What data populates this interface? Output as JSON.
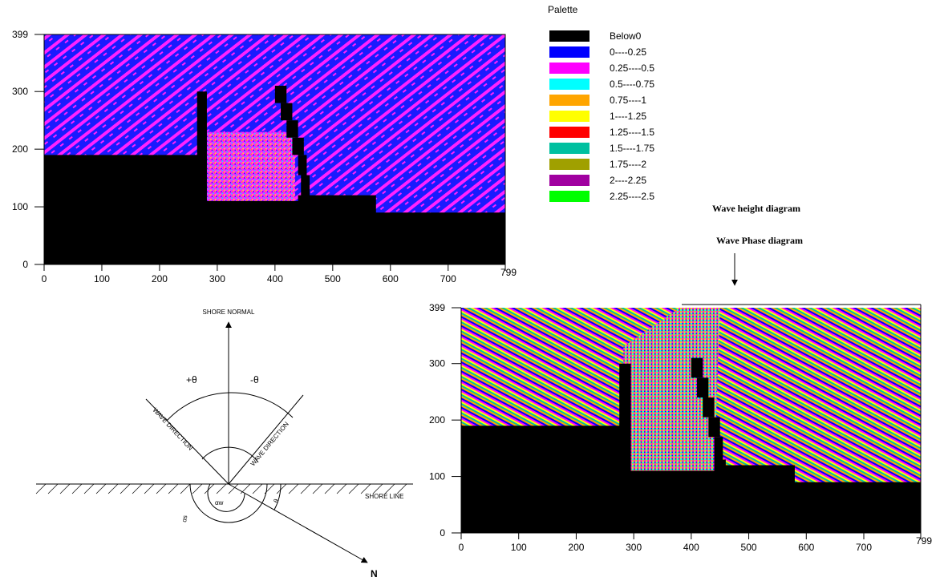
{
  "wave_height_plot": {
    "xticks": [
      0,
      100,
      200,
      300,
      400,
      500,
      600,
      700,
      799
    ],
    "yticks": [
      0,
      100,
      200,
      300,
      399
    ]
  },
  "palette": {
    "title": "Palette",
    "entries": [
      {
        "label": "Below0",
        "color": "#000000"
      },
      {
        "label": "0----0.25",
        "color": "#0000ff"
      },
      {
        "label": "0.25----0.5",
        "color": "#ff00ff"
      },
      {
        "label": "0.5----0.75",
        "color": "#00ffff"
      },
      {
        "label": "0.75----1",
        "color": "#ffa500"
      },
      {
        "label": "1----1.25",
        "color": "#ffff00"
      },
      {
        "label": "1.25----1.5",
        "color": "#ff0000"
      },
      {
        "label": "1.5----1.75",
        "color": "#00c0a0"
      },
      {
        "label": "1.75----2",
        "color": "#a0a000"
      },
      {
        "label": "2----2.25",
        "color": "#a000a0"
      },
      {
        "label": "2.25----2.5",
        "color": "#00ff00"
      }
    ]
  },
  "annotations": {
    "wave_height": "Wave height diagram",
    "wave_phase": "Wave Phase diagram"
  },
  "diagram": {
    "shore_normal": "SHORE NORMAL",
    "plus_theta": "+θ",
    "minus_theta": "-θ",
    "wave_direction_left": "WAVE DIRECTION",
    "wave_direction_right": "WAVE DIRECTION",
    "shore_line": "SHORE LINE",
    "alpha_s": "αs",
    "alpha_w": "αw",
    "theta": "θ",
    "north": "N"
  },
  "wave_phase_plot": {
    "xticks": [
      0,
      100,
      200,
      300,
      400,
      500,
      600,
      700,
      799
    ],
    "yticks": [
      0,
      100,
      200,
      300,
      399
    ]
  }
}
